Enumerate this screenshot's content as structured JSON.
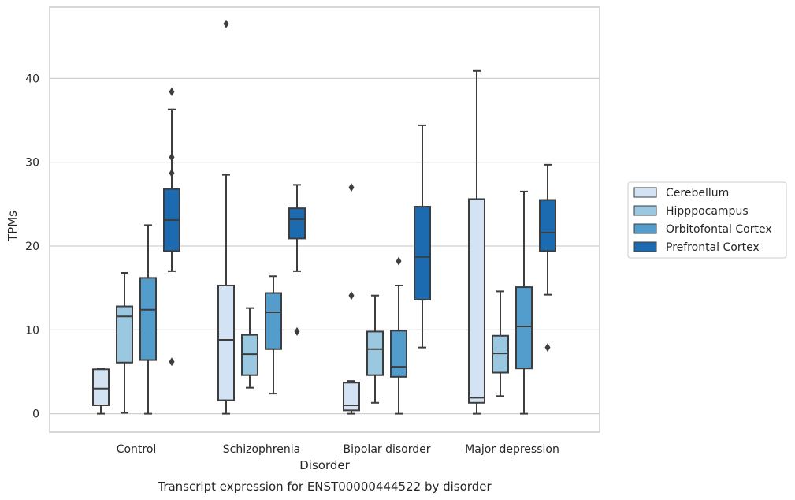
{
  "caption": "Transcript expression for ENST00000444522 by disorder",
  "chart_data": {
    "type": "box",
    "xlabel": "Disorder",
    "ylabel": "TPMs",
    "ylim": [
      -2.2,
      48.5
    ],
    "yticks": [
      0,
      10,
      20,
      30,
      40
    ],
    "grid": "horizontal",
    "legend_position": "outside-right",
    "categories": [
      "Control",
      "Schizophrenia",
      "Bipolar disorder",
      "Major depression"
    ],
    "series": [
      {
        "name": "Cerebellum",
        "color": "#d3e3f3",
        "boxes": [
          {
            "whisker_low": 0.0,
            "q1": 1.0,
            "median": 3.0,
            "q3": 5.3,
            "whisker_high": 5.4,
            "outliers": []
          },
          {
            "whisker_low": 0.0,
            "q1": 1.6,
            "median": 8.8,
            "q3": 15.3,
            "whisker_high": 28.5,
            "outliers": [
              46.5
            ]
          },
          {
            "whisker_low": 0.0,
            "q1": 0.4,
            "median": 1.0,
            "q3": 3.7,
            "whisker_high": 3.9,
            "outliers": [
              14.1,
              27.0
            ]
          },
          {
            "whisker_low": 0.0,
            "q1": 1.3,
            "median": 1.9,
            "q3": 25.6,
            "whisker_high": 40.9,
            "outliers": []
          }
        ]
      },
      {
        "name": "Hipppocampus",
        "color": "#9ac8e0",
        "boxes": [
          {
            "whisker_low": 0.1,
            "q1": 6.1,
            "median": 11.6,
            "q3": 12.8,
            "whisker_high": 16.8,
            "outliers": []
          },
          {
            "whisker_low": 3.1,
            "q1": 4.6,
            "median": 7.1,
            "q3": 9.4,
            "whisker_high": 12.6,
            "outliers": []
          },
          {
            "whisker_low": 1.3,
            "q1": 4.6,
            "median": 7.7,
            "q3": 9.8,
            "whisker_high": 14.1,
            "outliers": []
          },
          {
            "whisker_low": 2.1,
            "q1": 4.9,
            "median": 7.2,
            "q3": 9.3,
            "whisker_high": 14.6,
            "outliers": []
          }
        ]
      },
      {
        "name": "Orbitofontal Cortex",
        "color": "#529dcc",
        "boxes": [
          {
            "whisker_low": 0.0,
            "q1": 6.4,
            "median": 12.4,
            "q3": 16.2,
            "whisker_high": 22.5,
            "outliers": []
          },
          {
            "whisker_low": 2.4,
            "q1": 7.7,
            "median": 12.1,
            "q3": 14.4,
            "whisker_high": 16.4,
            "outliers": []
          },
          {
            "whisker_low": 0.0,
            "q1": 4.4,
            "median": 5.6,
            "q3": 9.9,
            "whisker_high": 15.3,
            "outliers": [
              18.2
            ]
          },
          {
            "whisker_low": 0.0,
            "q1": 5.4,
            "median": 10.4,
            "q3": 15.1,
            "whisker_high": 26.5,
            "outliers": []
          }
        ]
      },
      {
        "name": "Prefrontal Cortex",
        "color": "#1c6aaf",
        "boxes": [
          {
            "whisker_low": 17.0,
            "q1": 19.4,
            "median": 23.1,
            "q3": 26.8,
            "whisker_high": 36.3,
            "outliers": [
              30.6,
              28.7,
              38.4,
              6.2
            ]
          },
          {
            "whisker_low": 17.0,
            "q1": 20.9,
            "median": 23.2,
            "q3": 24.5,
            "whisker_high": 27.3,
            "outliers": [
              9.8
            ]
          },
          {
            "whisker_low": 7.9,
            "q1": 13.6,
            "median": 18.7,
            "q3": 24.7,
            "whisker_high": 34.4,
            "outliers": []
          },
          {
            "whisker_low": 14.2,
            "q1": 19.4,
            "median": 21.6,
            "q3": 25.5,
            "whisker_high": 29.7,
            "outliers": [
              7.9
            ]
          }
        ]
      }
    ]
  }
}
